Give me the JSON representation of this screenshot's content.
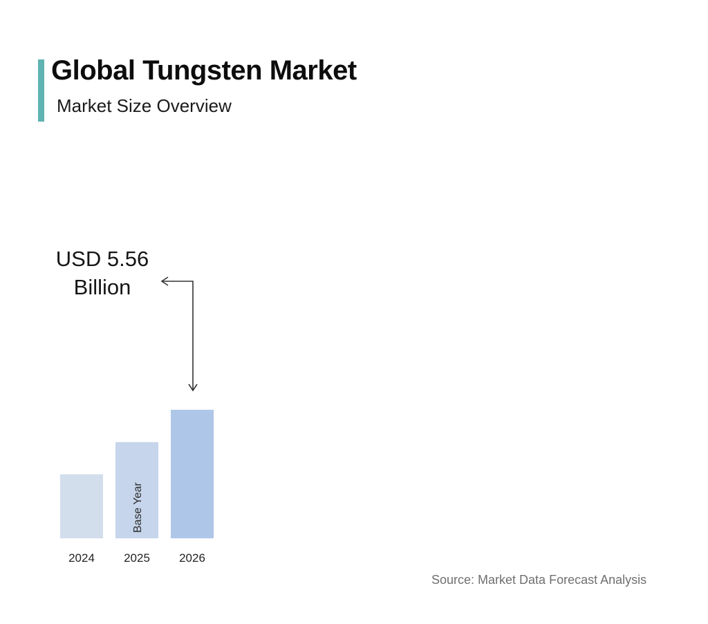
{
  "header": {
    "title": "Global Tungsten Market",
    "subtitle": "Market Size Overview"
  },
  "callout": {
    "line1": "USD 5.56",
    "line2": "Billion"
  },
  "source": "Source: Market Data Forecast Analysis",
  "colors": {
    "accent": "#5fb3b0",
    "bar_light": "#d3deed",
    "bar_mid": "#c6d5eb",
    "bar_dark": "#aec6e8",
    "arrow": "#333333"
  },
  "chart_data": {
    "type": "bar",
    "categories": [
      "2024",
      "2025",
      "2026"
    ],
    "values": [
      2.77,
      4.16,
      5.56
    ],
    "bar_annotations": [
      "",
      "Base Year",
      ""
    ],
    "value_callout": {
      "category": "2026",
      "text": "USD 5.56 Billion"
    },
    "ylim": [
      0,
      5.56
    ],
    "title": "Global Tungsten Market",
    "subtitle": "Market Size Overview",
    "xlabel": "",
    "ylabel": "",
    "grid": false,
    "legend": "none"
  }
}
